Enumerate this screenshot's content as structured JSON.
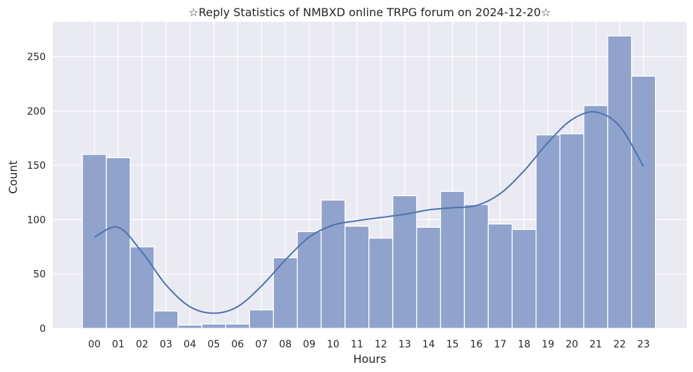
{
  "chart_data": {
    "type": "bar",
    "title": "☆Reply Statistics of NMBXD online TRPG forum on 2024-12-20☆",
    "xlabel": "Hours",
    "ylabel": "Count",
    "categories": [
      "00",
      "01",
      "02",
      "03",
      "04",
      "05",
      "06",
      "07",
      "08",
      "09",
      "10",
      "11",
      "12",
      "13",
      "14",
      "15",
      "16",
      "17",
      "18",
      "19",
      "20",
      "21",
      "22",
      "23"
    ],
    "values": [
      160,
      157,
      75,
      16,
      3,
      4,
      4,
      17,
      65,
      89,
      118,
      94,
      83,
      122,
      93,
      126,
      114,
      96,
      91,
      178,
      179,
      205,
      269,
      232
    ],
    "ylim": [
      0,
      282
    ],
    "yticks": [
      0,
      50,
      100,
      150,
      200,
      250
    ],
    "grid": true,
    "kde": {
      "x": [
        0,
        1,
        2,
        3,
        4,
        5,
        6,
        7,
        8,
        9,
        10,
        11,
        12,
        13,
        14,
        15,
        16,
        17,
        18,
        19,
        20,
        21,
        22,
        23
      ],
      "y": [
        84,
        93,
        70,
        40,
        20,
        14,
        20,
        39,
        63,
        84,
        95,
        99,
        102,
        105,
        109,
        111,
        113,
        124,
        145,
        171,
        192,
        199,
        186,
        149
      ]
    },
    "colors": {
      "bar": "#8fa3cc",
      "bar_stroke": "#ffffff",
      "line": "#4c72b0",
      "plot_bg": "#eaeaf2",
      "grid": "#ffffff"
    }
  }
}
